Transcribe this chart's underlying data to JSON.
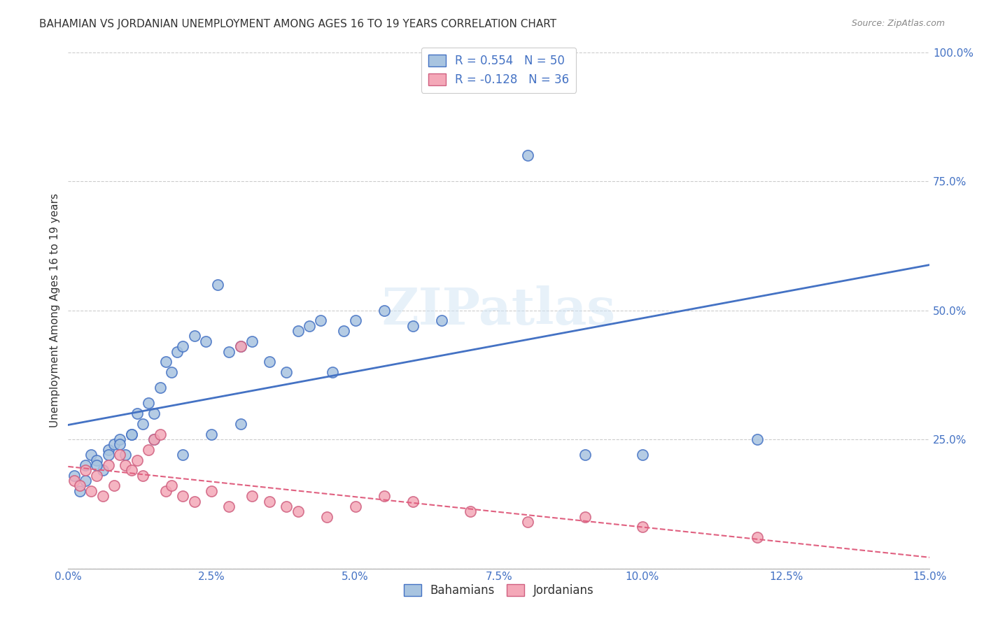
{
  "title": "BAHAMIAN VS JORDANIAN UNEMPLOYMENT AMONG AGES 16 TO 19 YEARS CORRELATION CHART",
  "source": "Source: ZipAtlas.com",
  "ylabel": "Unemployment Among Ages 16 to 19 years",
  "legend_label1": "R = 0.554   N = 50",
  "legend_label2": "R = -0.128   N = 36",
  "color_blue": "#a8c4e0",
  "color_pink": "#f4a8b8",
  "line_blue": "#4472c4",
  "line_pink": "#e06080",
  "watermark": "ZIPatlas",
  "bahamians_x": [
    0.001,
    0.003,
    0.004,
    0.005,
    0.006,
    0.007,
    0.008,
    0.009,
    0.01,
    0.011,
    0.012,
    0.013,
    0.014,
    0.015,
    0.016,
    0.017,
    0.018,
    0.019,
    0.02,
    0.022,
    0.024,
    0.026,
    0.028,
    0.03,
    0.032,
    0.035,
    0.038,
    0.04,
    0.042,
    0.044,
    0.046,
    0.048,
    0.05,
    0.055,
    0.06,
    0.065,
    0.002,
    0.003,
    0.005,
    0.007,
    0.009,
    0.011,
    0.015,
    0.02,
    0.025,
    0.03,
    0.08,
    0.09,
    0.1,
    0.12
  ],
  "bahamians_y": [
    0.18,
    0.2,
    0.22,
    0.21,
    0.19,
    0.23,
    0.24,
    0.25,
    0.22,
    0.26,
    0.3,
    0.28,
    0.32,
    0.3,
    0.35,
    0.4,
    0.38,
    0.42,
    0.43,
    0.45,
    0.44,
    0.55,
    0.42,
    0.43,
    0.44,
    0.4,
    0.38,
    0.46,
    0.47,
    0.48,
    0.38,
    0.46,
    0.48,
    0.5,
    0.47,
    0.48,
    0.15,
    0.17,
    0.2,
    0.22,
    0.24,
    0.26,
    0.25,
    0.22,
    0.26,
    0.28,
    0.8,
    0.22,
    0.22,
    0.25
  ],
  "jordanians_x": [
    0.001,
    0.002,
    0.003,
    0.004,
    0.005,
    0.006,
    0.007,
    0.008,
    0.009,
    0.01,
    0.011,
    0.012,
    0.013,
    0.014,
    0.015,
    0.016,
    0.017,
    0.018,
    0.02,
    0.022,
    0.025,
    0.028,
    0.03,
    0.032,
    0.035,
    0.038,
    0.04,
    0.045,
    0.05,
    0.055,
    0.06,
    0.07,
    0.08,
    0.09,
    0.1,
    0.12
  ],
  "jordanians_y": [
    0.17,
    0.16,
    0.19,
    0.15,
    0.18,
    0.14,
    0.2,
    0.16,
    0.22,
    0.2,
    0.19,
    0.21,
    0.18,
    0.23,
    0.25,
    0.26,
    0.15,
    0.16,
    0.14,
    0.13,
    0.15,
    0.12,
    0.43,
    0.14,
    0.13,
    0.12,
    0.11,
    0.1,
    0.12,
    0.14,
    0.13,
    0.11,
    0.09,
    0.1,
    0.08,
    0.06
  ],
  "xmin": 0.0,
  "xmax": 0.15,
  "ymin": 0.0,
  "ymax": 1.0
}
